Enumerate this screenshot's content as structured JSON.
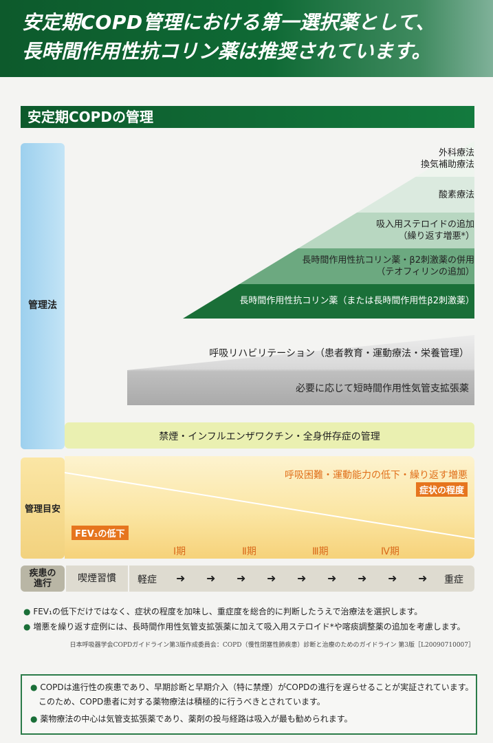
{
  "header": {
    "title_line1": "安定期COPD管理における第一選択薬として、",
    "title_line2": "長時間作用性抗コリン薬は推奨されています。"
  },
  "section_title": "安定期COPDの管理",
  "side_labels": {
    "management_method": "管理法",
    "management_target": "管理目安",
    "disease_progression_line1": "疾患の",
    "disease_progression_line2": "進行"
  },
  "treatment_steps": [
    {
      "line1": "外科療法",
      "line2": "換気補助療法"
    },
    {
      "line1": "酸素療法",
      "line2": ""
    },
    {
      "line1": "吸入用ステロイドの追加",
      "line2": "（繰り返す増悪*）"
    },
    {
      "line1": "長時間作用性抗コリン薬・β2刺激薬の併用",
      "line2": "（テオフィリンの追加）"
    },
    {
      "line1": "長時間作用性抗コリン薬（または長時間作用性β2刺激薬）",
      "line2": ""
    }
  ],
  "rehab": "呼吸リハビリテーション（患者教育・運動療法・栄養管理）",
  "short_acting": "必要に応じて短時間作用性気管支拡張薬",
  "baseline": "禁煙・インフルエンザワクチン・全身併存症の管理",
  "target": {
    "symptoms_text": "呼吸困難・運動能力の低下・繰り返す増悪",
    "symptom_badge": "症状の程度",
    "fev_badge": "FEV₁の低下",
    "stages": [
      "Ⅰ期",
      "Ⅱ期",
      "Ⅲ期",
      "Ⅳ期"
    ]
  },
  "progression": {
    "smoking": "喫煙習慣",
    "mild": "軽症",
    "severe": "重症",
    "arrow": "➜"
  },
  "notes": [
    "FEV₁の低下だけではなく、症状の程度を加味し、重症度を総合的に判断したうえで治療法を選択します。",
    "増悪を繰り返す症例には、長時間作用性気管支拡張薬に加えて吸入用ステロイド*や喀痰調整薬の追加を考慮します。"
  ],
  "bullet": "●",
  "source": "日本呼吸器学会COPDガイドライン第3版作成委員会：COPD（慢性閉塞性肺疾患）診断と治療のためのガイドライン 第3版［L20090710007］",
  "box": {
    "line1": "COPDは進行性の疾患であり、早期診断と早期介入（特に禁煙）がCOPDの進行を遅らせることが実証されています。",
    "line2": "このため、COPD患者に対する薬物療法は積極的に行うべきとされています。",
    "line3": "薬物療法の中心は気管支拡張薬であり、薬剤の投与経路は吸入が最も勧められます。"
  }
}
